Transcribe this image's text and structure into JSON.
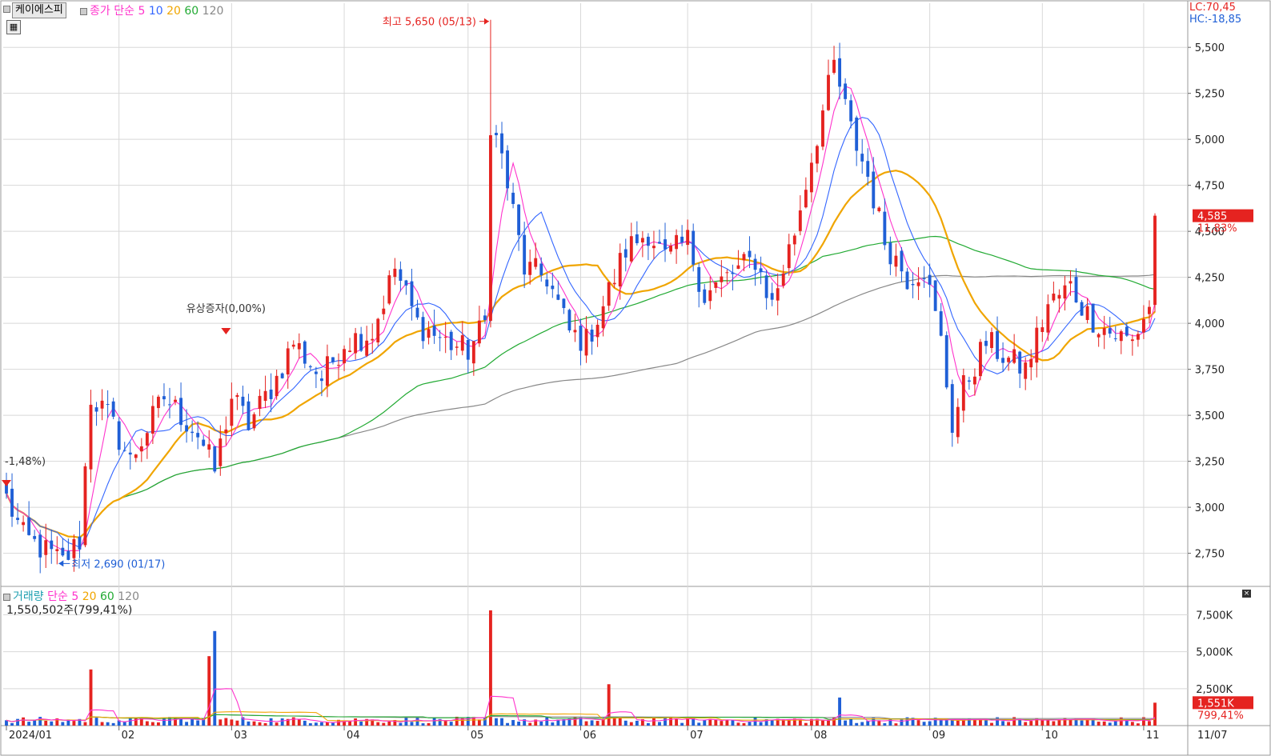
{
  "header": {
    "stock_name": "케이에스피",
    "price_label": "종가",
    "ma_type": "단순",
    "ma_periods": [
      "5",
      "10",
      "20",
      "60",
      "120"
    ],
    "lc": "LC:70,45",
    "hc": "HC:-18,85"
  },
  "volume_header": {
    "label": "거래량",
    "ma_type": "단순",
    "ma_periods": [
      "5",
      "20",
      "60",
      "120"
    ],
    "last_value": "1,550,502주(799,41%)"
  },
  "annotations": {
    "high": "최고 5,650 (05/13)",
    "low": "최저 2,690 (01/17)",
    "rights": "유상증자(0,00%)",
    "first_change": "-1,48%)",
    "current_price": "4,585",
    "current_change": "11,83%",
    "current_volume": "1,551K",
    "current_volume_pct": "799,41%"
  },
  "colors": {
    "up": "#e52320",
    "down": "#1f5fd6",
    "ma5": "#ff33cc",
    "ma10": "#3366ff",
    "ma20": "#f0a500",
    "ma60": "#22aa33",
    "ma120": "#888888",
    "grid": "#d8d8d8"
  },
  "chart_data": {
    "type": "candlestick",
    "price_axis": {
      "ticks": [
        "5,500",
        "5,250",
        "5,000",
        "4,750",
        "4,500",
        "4,250",
        "4,000",
        "3,750",
        "3,500",
        "3,250",
        "3,000",
        "2,750"
      ],
      "ylim": [
        2570,
        5740
      ]
    },
    "volume_axis": {
      "ticks": [
        "7,500K",
        "5,000K",
        "2,500K"
      ],
      "ylim": [
        0,
        8500000
      ]
    },
    "x_labels": [
      "2024/01",
      "02",
      "03",
      "04",
      "05",
      "06",
      "07",
      "08",
      "09",
      "10",
      "11",
      "11/07"
    ],
    "anchors": [
      {
        "i": 0,
        "c": 3050
      },
      {
        "i": 3,
        "c": 2840
      },
      {
        "i": 10,
        "c": 2700
      },
      {
        "i": 13,
        "c": 2820
      },
      {
        "i": 15,
        "c": 3600
      },
      {
        "i": 18,
        "c": 3500
      },
      {
        "i": 22,
        "c": 3250
      },
      {
        "i": 28,
        "c": 3600
      },
      {
        "i": 34,
        "c": 3400
      },
      {
        "i": 37,
        "c": 3200
      },
      {
        "i": 40,
        "c": 3600
      },
      {
        "i": 43,
        "c": 3450
      },
      {
        "i": 48,
        "c": 3700
      },
      {
        "i": 51,
        "c": 3900
      },
      {
        "i": 56,
        "c": 3700
      },
      {
        "i": 60,
        "c": 3900
      },
      {
        "i": 65,
        "c": 3950
      },
      {
        "i": 69,
        "c": 4300
      },
      {
        "i": 73,
        "c": 4000
      },
      {
        "i": 78,
        "c": 3900
      },
      {
        "i": 82,
        "c": 3850
      },
      {
        "i": 85,
        "c": 4000
      },
      {
        "i": 86,
        "c": 5100
      },
      {
        "i": 88,
        "c": 4900
      },
      {
        "i": 92,
        "c": 4300
      },
      {
        "i": 96,
        "c": 4250
      },
      {
        "i": 100,
        "c": 3950
      },
      {
        "i": 103,
        "c": 3900
      },
      {
        "i": 106,
        "c": 4100
      },
      {
        "i": 110,
        "c": 4400
      },
      {
        "i": 114,
        "c": 4500
      },
      {
        "i": 117,
        "c": 4350
      },
      {
        "i": 121,
        "c": 4450
      },
      {
        "i": 124,
        "c": 4150
      },
      {
        "i": 128,
        "c": 4250
      },
      {
        "i": 133,
        "c": 4350
      },
      {
        "i": 136,
        "c": 4100
      },
      {
        "i": 140,
        "c": 4500
      },
      {
        "i": 143,
        "c": 4900
      },
      {
        "i": 147,
        "c": 5400
      },
      {
        "i": 150,
        "c": 5050
      },
      {
        "i": 153,
        "c": 4800
      },
      {
        "i": 156,
        "c": 4450
      },
      {
        "i": 160,
        "c": 4250
      },
      {
        "i": 163,
        "c": 4300
      },
      {
        "i": 166,
        "c": 3900
      },
      {
        "i": 168,
        "c": 3450
      },
      {
        "i": 170,
        "c": 3650
      },
      {
        "i": 174,
        "c": 3900
      },
      {
        "i": 178,
        "c": 3800
      },
      {
        "i": 181,
        "c": 3750
      },
      {
        "i": 185,
        "c": 4100
      },
      {
        "i": 189,
        "c": 4200
      },
      {
        "i": 192,
        "c": 4050
      },
      {
        "i": 196,
        "c": 3950
      },
      {
        "i": 200,
        "c": 3900
      },
      {
        "i": 203,
        "c": 4100
      },
      {
        "i": 204,
        "c": 4585
      }
    ],
    "volume_spikes": {
      "15": 3800000,
      "36": 4700000,
      "37": 6400000,
      "86": 7800000,
      "107": 2800000,
      "148": 1900000,
      "204": 1550502
    },
    "markers": {
      "high_index": 86,
      "high_value": 5650,
      "low_index": 9,
      "low_value": 2690,
      "rights_index": 39
    }
  }
}
